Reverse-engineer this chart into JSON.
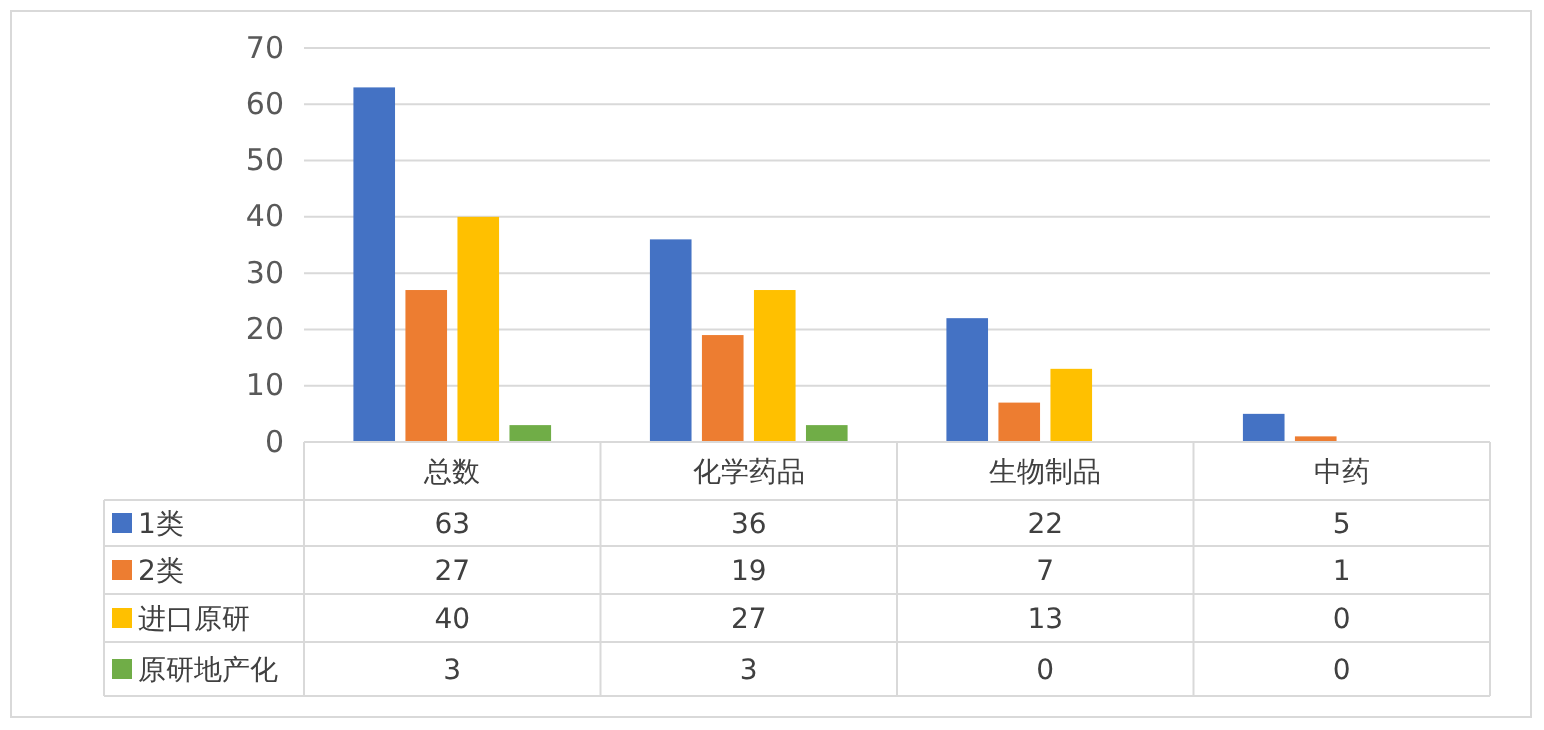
{
  "chart_data": {
    "type": "bar",
    "categories": [
      "总数",
      "化学药品",
      "生物制品",
      "中药"
    ],
    "series": [
      {
        "name": "1类",
        "color": "#4472c4",
        "values": [
          63,
          36,
          22,
          5
        ]
      },
      {
        "name": "2类",
        "color": "#ed7d31",
        "values": [
          27,
          19,
          7,
          1
        ]
      },
      {
        "name": "进口原研",
        "color": "#ffc000",
        "values": [
          40,
          27,
          13,
          0
        ]
      },
      {
        "name": "原研地产化",
        "color": "#70ad47",
        "values": [
          3,
          3,
          0,
          0
        ]
      }
    ],
    "ylim": [
      0,
      70
    ],
    "yticks": [
      0,
      10,
      20,
      30,
      40,
      50,
      60,
      70
    ],
    "grid": "y",
    "legend": "bottom",
    "data_labels": true
  }
}
